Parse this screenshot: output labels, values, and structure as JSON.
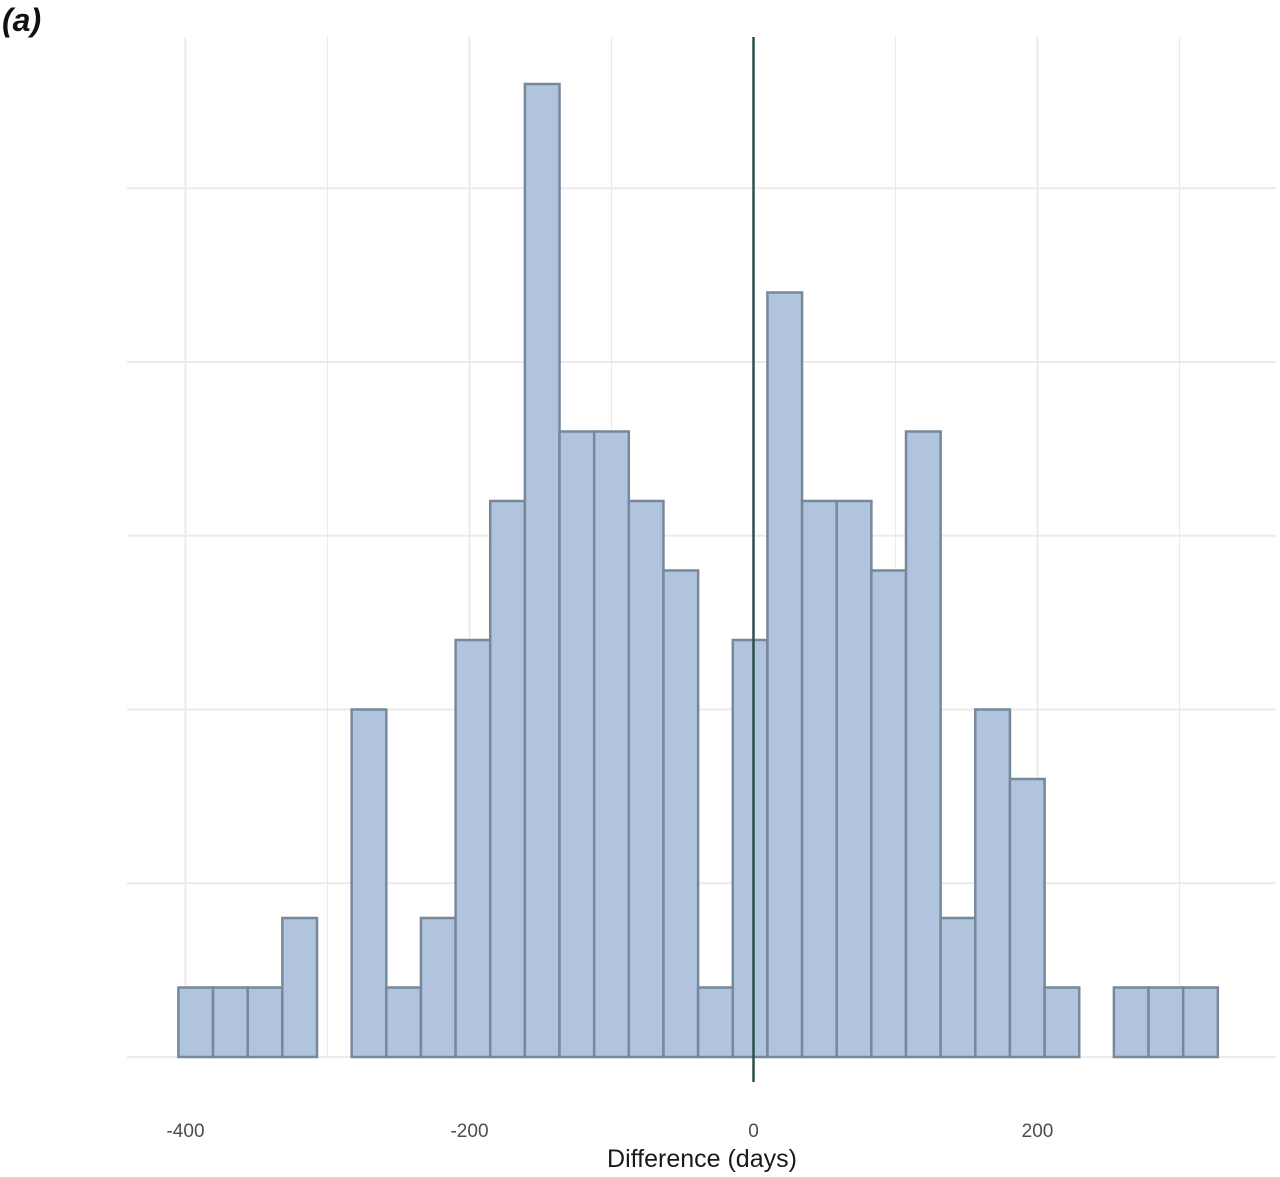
{
  "panel_label": "(a)",
  "chart_data": {
    "type": "bar",
    "subtype": "histogram",
    "title": "",
    "xlabel": "Difference (days)",
    "ylabel": "",
    "xlim": [
      -420,
      330
    ],
    "ylim": [
      0,
      14
    ],
    "x_ticks": [
      -400,
      -200,
      0,
      200
    ],
    "x_tick_labels": [
      "-400",
      "-200",
      "0",
      "200"
    ],
    "y_ticks_shown": false,
    "y_grid_values": [
      0,
      2.5,
      5,
      7.5,
      10,
      12.5
    ],
    "grid": true,
    "bin_width": 24.4,
    "bins": [
      {
        "x0": -405,
        "x1": -380.6,
        "count": 1
      },
      {
        "x0": -380.6,
        "x1": -356.2,
        "count": 1
      },
      {
        "x0": -356.2,
        "x1": -331.8,
        "count": 1
      },
      {
        "x0": -331.8,
        "x1": -307.4,
        "count": 2
      },
      {
        "x0": -307.4,
        "x1": -283,
        "count": 0
      },
      {
        "x0": -283,
        "x1": -258.6,
        "count": 5
      },
      {
        "x0": -258.6,
        "x1": -234.2,
        "count": 1
      },
      {
        "x0": -234.2,
        "x1": -209.8,
        "count": 2
      },
      {
        "x0": -209.8,
        "x1": -185.4,
        "count": 6
      },
      {
        "x0": -185.4,
        "x1": -161,
        "count": 8
      },
      {
        "x0": -161,
        "x1": -136.6,
        "count": 14
      },
      {
        "x0": -136.6,
        "x1": -112.2,
        "count": 9
      },
      {
        "x0": -112.2,
        "x1": -87.8,
        "count": 9
      },
      {
        "x0": -87.8,
        "x1": -63.4,
        "count": 8
      },
      {
        "x0": -63.4,
        "x1": -39,
        "count": 7
      },
      {
        "x0": -39,
        "x1": -14.6,
        "count": 1
      },
      {
        "x0": -14.6,
        "x1": 9.8,
        "count": 6
      },
      {
        "x0": 9.8,
        "x1": 34.2,
        "count": 11
      },
      {
        "x0": 34.2,
        "x1": 58.6,
        "count": 8
      },
      {
        "x0": 58.6,
        "x1": 83,
        "count": 8
      },
      {
        "x0": 83,
        "x1": 107.4,
        "count": 7
      },
      {
        "x0": 107.4,
        "x1": 131.8,
        "count": 9
      },
      {
        "x0": 131.8,
        "x1": 156.2,
        "count": 2
      },
      {
        "x0": 156.2,
        "x1": 180.6,
        "count": 5
      },
      {
        "x0": 180.6,
        "x1": 205,
        "count": 4
      },
      {
        "x0": 205,
        "x1": 229.4,
        "count": 1
      },
      {
        "x0": 229.4,
        "x1": 253.8,
        "count": 0
      },
      {
        "x0": 253.8,
        "x1": 278.2,
        "count": 1
      },
      {
        "x0": 278.2,
        "x1": 302.6,
        "count": 1
      },
      {
        "x0": 302.6,
        "x1": 327,
        "count": 1
      }
    ],
    "reference_line_x": 0,
    "colors": {
      "bar_fill": "#b0c4de",
      "bar_stroke": "#778899",
      "reference_line": "#2f4f4f",
      "grid": "#ebebeb"
    }
  }
}
